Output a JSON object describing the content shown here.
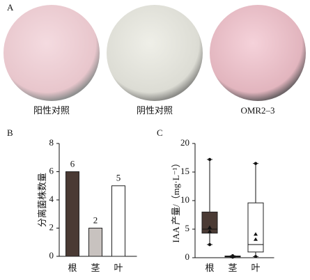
{
  "panel_a": {
    "label": "A",
    "plates": [
      "阳性对照",
      "阴性对照",
      "OMR2–3"
    ]
  },
  "chart_data": [
    {
      "type": "bar",
      "panel_label": "B",
      "y_label": "分离菌株数量",
      "categories": [
        "根",
        "茎",
        "叶"
      ],
      "values": [
        6,
        2,
        5
      ],
      "colors": [
        "#4a3a34",
        "#c8c2bf",
        "#ffffff"
      ],
      "ylim": [
        0,
        8
      ],
      "yticks": [
        0,
        2,
        4,
        6,
        8
      ]
    },
    {
      "type": "box",
      "panel_label": "C",
      "y_label": "IAA 产量/（mg·L⁻¹）",
      "categories": [
        "根",
        "茎",
        "叶"
      ],
      "boxes": [
        {
          "low": 2.3,
          "q1": 4.3,
          "median": 5,
          "q3": 8,
          "high": 17.2,
          "points": [
            4.6,
            5.3
          ],
          "color": "#4a3a34"
        },
        {
          "low": 0.1,
          "q1": 0.15,
          "median": 0.2,
          "q3": 0.3,
          "high": 0.35,
          "points": [],
          "color": "#c8c2bf"
        },
        {
          "low": 0.2,
          "q1": 1,
          "median": 2.3,
          "q3": 9.6,
          "high": 16.5,
          "points": [
            3.2,
            4.1
          ],
          "color": "#ffffff"
        }
      ],
      "ylim": [
        0,
        20
      ],
      "yticks": [
        0,
        5,
        10,
        15,
        20
      ]
    }
  ]
}
